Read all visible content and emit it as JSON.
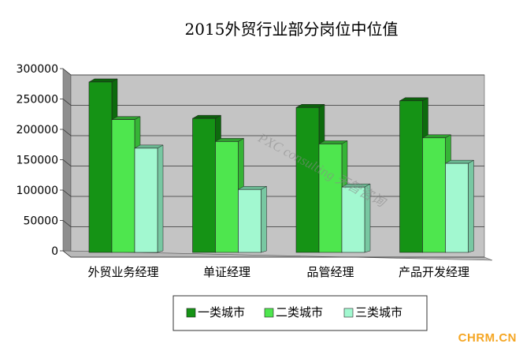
{
  "chart_data": {
    "type": "bar",
    "title": "2015外贸行业部分岗位中位值",
    "categories": [
      "外贸业务经理",
      "单证经理",
      "品管经理",
      "产品开发经理"
    ],
    "series": [
      {
        "name": "一类城市",
        "values": [
          278000,
          218000,
          236000,
          247000
        ]
      },
      {
        "name": "二类城市",
        "values": [
          216000,
          180000,
          176000,
          186000
        ]
      },
      {
        "name": "三类城市",
        "values": [
          169000,
          101000,
          105000,
          144000
        ]
      }
    ],
    "yticks": [
      "0",
      "50000",
      "100000",
      "150000",
      "200000",
      "250000",
      "300000"
    ],
    "ylim": [
      0,
      300000
    ],
    "grid": true,
    "legend_position": "bottom",
    "colors": {
      "series": [
        "#159315",
        "#4ee64e",
        "#a2f8d0"
      ],
      "series_side": [
        "#0d6a0d",
        "#36b436",
        "#78c8a2"
      ],
      "series_top": [
        "#0c600c",
        "#2f9e2f",
        "#6ab892"
      ],
      "wall": "#c4c4c4",
      "wall_side": "#8e8e8e",
      "floor": "#b8b8b8"
    }
  },
  "watermark": {
    "text": "CHRM.CN",
    "overlay": "PXC consulting 天智咨询"
  }
}
